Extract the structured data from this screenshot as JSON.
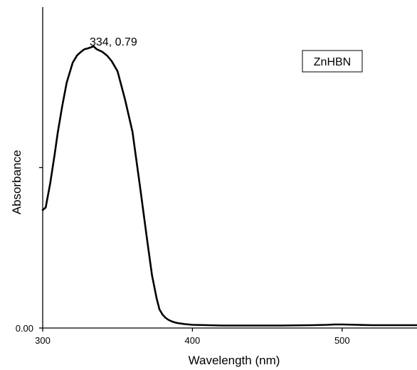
{
  "chart_data": {
    "type": "line",
    "title": "",
    "xlabel": "Wavelength (nm)",
    "ylabel": "Absorbance",
    "xlim": [
      300,
      550
    ],
    "ylim": [
      0.0,
      0.9
    ],
    "x_ticks": [
      300,
      400,
      500
    ],
    "x_tick_labels": [
      "300",
      "400",
      "500"
    ],
    "y_ticks": [
      0.0,
      0.45
    ],
    "y_tick_labels": [
      "0.00",
      ""
    ],
    "legend": "ZnHBN",
    "legend_position": "top-right",
    "annotation": {
      "text": "334, 0.79",
      "x": 334,
      "y": 0.79
    },
    "grid": false,
    "series": [
      {
        "name": "ZnHBN",
        "color": "#000000",
        "x": [
          300,
          302,
          305,
          308,
          310,
          313,
          316,
          320,
          323,
          326,
          328,
          330,
          332,
          334,
          336,
          338,
          340,
          343,
          346,
          350,
          355,
          360,
          365,
          370,
          373,
          376,
          378,
          380,
          382,
          384,
          386,
          388,
          390,
          395,
          400,
          410,
          420,
          440,
          460,
          480,
          490,
          495,
          500,
          510,
          520,
          530,
          540,
          550
        ],
        "y": [
          0.331,
          0.338,
          0.405,
          0.487,
          0.546,
          0.622,
          0.688,
          0.744,
          0.765,
          0.776,
          0.782,
          0.784,
          0.787,
          0.79,
          0.782,
          0.778,
          0.774,
          0.764,
          0.749,
          0.72,
          0.641,
          0.55,
          0.396,
          0.239,
          0.148,
          0.085,
          0.052,
          0.038,
          0.029,
          0.023,
          0.019,
          0.016,
          0.014,
          0.011,
          0.009,
          0.008,
          0.007,
          0.007,
          0.007,
          0.008,
          0.009,
          0.01,
          0.01,
          0.009,
          0.008,
          0.008,
          0.008,
          0.008
        ]
      }
    ]
  }
}
